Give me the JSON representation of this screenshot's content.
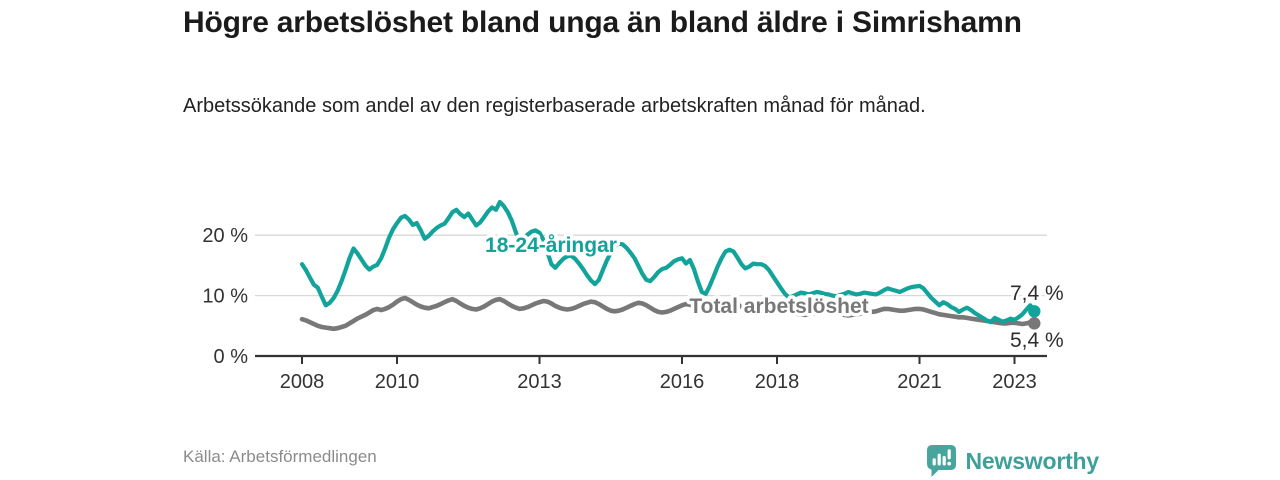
{
  "header": {
    "title": "Högre arbetslöshet bland unga än bland äldre i Simrishamn",
    "subtitle": "Arbetssökande som andel av den registerbaserade arbetskraften månad för månad."
  },
  "footer": {
    "source": "Källa: Arbetsförmedlingen",
    "brand": "Newsworthy"
  },
  "colors": {
    "young_line": "#12a39a",
    "total_line": "#787878",
    "axis": "#333333",
    "grid": "#d7d7d7",
    "tick_text": "#333333",
    "value_label_text": "#2e2e2e",
    "brand_teal": "#3fa099",
    "logo_teal": "#48a59e"
  },
  "chart_data": {
    "type": "line",
    "title": "Högre arbetslöshet bland unga än bland äldre i Simrishamn",
    "subtitle": "Arbetssökande som andel av den registerbaserade arbetskraften månad för månad.",
    "xlabel": "",
    "ylabel": "",
    "x_unit": "month",
    "x_start": "2008-01",
    "x_end": "2023-06",
    "ylim": [
      0,
      27
    ],
    "grid": true,
    "legend_position": "inline-labels",
    "y_ticks": [
      {
        "value": 0,
        "label": "0 %"
      },
      {
        "value": 10,
        "label": "10 %"
      },
      {
        "value": 20,
        "label": "20 %"
      }
    ],
    "x_ticks": [
      {
        "year": 2008,
        "label": "2008"
      },
      {
        "year": 2010,
        "label": "2010"
      },
      {
        "year": 2013,
        "label": "2013"
      },
      {
        "year": 2016,
        "label": "2016"
      },
      {
        "year": 2018,
        "label": "2018"
      },
      {
        "year": 2021,
        "label": "2021"
      },
      {
        "year": 2023,
        "label": "2023"
      }
    ],
    "series": [
      {
        "name": "18-24-åringar",
        "color": "#12a39a",
        "end_label": "7,4 %",
        "end_value": 7.4,
        "values": [
          15.2,
          14.2,
          13.0,
          11.8,
          11.3,
          9.8,
          8.4,
          8.8,
          9.6,
          10.8,
          12.4,
          14.2,
          16.2,
          17.8,
          17.0,
          16.0,
          15.0,
          14.3,
          14.8,
          15.1,
          16.2,
          17.8,
          19.6,
          21.0,
          22.0,
          22.9,
          23.2,
          22.6,
          21.7,
          22.0,
          20.8,
          19.4,
          19.9,
          20.6,
          21.2,
          21.6,
          21.9,
          22.8,
          23.8,
          24.2,
          23.5,
          23.0,
          23.6,
          22.6,
          21.6,
          22.1,
          23.0,
          23.9,
          24.6,
          24.2,
          25.5,
          24.8,
          23.8,
          22.4,
          20.5,
          18.9,
          19.4,
          20.1,
          20.6,
          20.8,
          20.4,
          19.2,
          17.2,
          15.2,
          14.6,
          15.4,
          16.1,
          16.5,
          16.6,
          16.1,
          15.3,
          14.4,
          13.4,
          12.5,
          11.9,
          12.6,
          14.2,
          15.8,
          17.1,
          18.2,
          18.6,
          18.5,
          17.9,
          17.1,
          16.2,
          14.9,
          13.6,
          12.6,
          12.4,
          13.1,
          13.9,
          14.4,
          14.6,
          15.1,
          15.7,
          16.0,
          16.2,
          15.3,
          15.9,
          14.4,
          12.4,
          10.6,
          10.3,
          11.6,
          13.2,
          14.8,
          16.2,
          17.3,
          17.6,
          17.3,
          16.3,
          15.2,
          14.5,
          14.8,
          15.3,
          15.2,
          15.2,
          14.9,
          14.2,
          13.2,
          12.2,
          11.2,
          10.3,
          9.7,
          9.9,
          10.2,
          10.5,
          10.4,
          10.2,
          10.4,
          10.6,
          10.5,
          10.3,
          10.2,
          10.0,
          9.9,
          10.1,
          10.3,
          10.6,
          10.4,
          10.2,
          10.3,
          10.5,
          10.4,
          10.3,
          10.2,
          10.5,
          10.9,
          11.2,
          11.0,
          10.8,
          10.6,
          10.9,
          11.2,
          11.4,
          11.5,
          11.6,
          11.2,
          10.4,
          9.6,
          9.0,
          8.4,
          8.9,
          8.6,
          8.1,
          7.8,
          7.3,
          7.7,
          8.0,
          7.6,
          7.1,
          6.7,
          6.3,
          5.9,
          5.6,
          6.3,
          6.0,
          5.7,
          5.9,
          6.2,
          6.0,
          6.4,
          6.9,
          7.7,
          8.4,
          7.4
        ]
      },
      {
        "name": "Total arbetslöshet",
        "color": "#787878",
        "end_label": "5,4 %",
        "end_value": 5.4,
        "values": [
          6.1,
          5.9,
          5.6,
          5.3,
          5.0,
          4.8,
          4.7,
          4.6,
          4.5,
          4.6,
          4.8,
          5.0,
          5.4,
          5.8,
          6.2,
          6.5,
          6.8,
          7.2,
          7.6,
          7.8,
          7.6,
          7.8,
          8.1,
          8.5,
          9.0,
          9.4,
          9.6,
          9.3,
          8.9,
          8.5,
          8.2,
          8.0,
          7.9,
          8.1,
          8.3,
          8.6,
          8.9,
          9.2,
          9.4,
          9.1,
          8.7,
          8.3,
          8.0,
          7.8,
          7.7,
          7.9,
          8.2,
          8.6,
          9.0,
          9.3,
          9.4,
          9.1,
          8.7,
          8.3,
          8.0,
          7.8,
          7.9,
          8.1,
          8.4,
          8.7,
          8.9,
          9.1,
          9.0,
          8.7,
          8.3,
          8.0,
          7.8,
          7.7,
          7.8,
          8.0,
          8.3,
          8.6,
          8.8,
          9.0,
          8.9,
          8.6,
          8.2,
          7.8,
          7.5,
          7.4,
          7.5,
          7.7,
          8.0,
          8.3,
          8.6,
          8.8,
          8.7,
          8.4,
          8.0,
          7.6,
          7.3,
          7.2,
          7.3,
          7.5,
          7.8,
          8.1,
          8.4,
          8.6,
          8.5,
          8.2,
          7.8,
          7.4,
          7.2,
          7.3,
          7.5,
          7.8,
          8.1,
          8.4,
          8.6,
          8.7,
          8.5,
          8.2,
          7.8,
          7.5,
          7.3,
          7.2,
          7.3,
          7.5,
          7.7,
          7.9,
          8.0,
          8.1,
          7.9,
          7.6,
          7.3,
          7.0,
          6.9,
          6.8,
          6.9,
          7.0,
          7.2,
          7.4,
          7.5,
          7.6,
          7.4,
          7.2,
          7.0,
          6.8,
          6.7,
          6.8,
          6.9,
          7.0,
          7.2,
          7.4,
          7.3,
          7.4,
          7.6,
          7.8,
          7.8,
          7.7,
          7.6,
          7.5,
          7.5,
          7.6,
          7.7,
          7.8,
          7.8,
          7.7,
          7.5,
          7.3,
          7.1,
          6.9,
          6.8,
          6.7,
          6.6,
          6.5,
          6.4,
          6.4,
          6.3,
          6.2,
          6.1,
          6.0,
          5.9,
          5.8,
          5.7,
          5.6,
          5.5,
          5.4,
          5.4,
          5.5,
          5.5,
          5.4,
          5.3,
          5.4,
          5.6,
          5.4
        ]
      }
    ]
  }
}
